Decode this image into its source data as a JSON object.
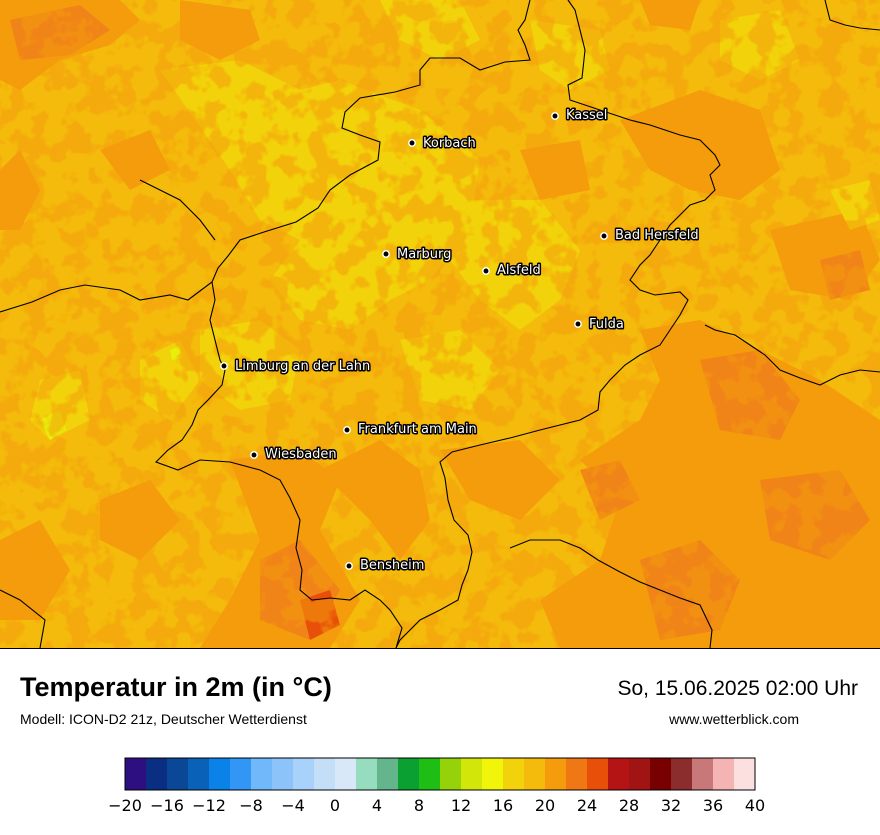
{
  "map": {
    "cities": [
      {
        "name": "Kassel"
      },
      {
        "name": "Korbach"
      },
      {
        "name": "Bad Hersfeld"
      },
      {
        "name": "Marburg"
      },
      {
        "name": "Alsfeld"
      },
      {
        "name": "Fulda"
      },
      {
        "name": "Limburg an der Lahn"
      },
      {
        "name": "Frankfurt am Main"
      },
      {
        "name": "Wiesbaden"
      },
      {
        "name": "Bensheim"
      }
    ],
    "colors": {
      "base": "#f4bb0c",
      "warm": "#f49c0c",
      "hot": "#f08418",
      "cool": "#f2d20a",
      "coolest": "#e7f00a"
    }
  },
  "footer": {
    "title": "Temperatur in 2m (in °C)",
    "model": "Modell: ICON-D2 21z, Deutscher Wetterdienst",
    "datetime": "So, 15.06.2025 02:00 Uhr",
    "website": "www.wetterblick.com"
  },
  "legend": {
    "colors": [
      "#2d0f82",
      "#0a2f82",
      "#0a4796",
      "#0a62b8",
      "#0a82e8",
      "#3296f4",
      "#70b8fa",
      "#8cc4fa",
      "#a8d2fa",
      "#c4def8",
      "#d8e8f8",
      "#96dcbe",
      "#64b48c",
      "#0aa032",
      "#1ebe14",
      "#96d20a",
      "#d2e60a",
      "#f0f50a",
      "#f2d20a",
      "#f4bb0c",
      "#f49c0c",
      "#f07814",
      "#e8500a",
      "#b41414",
      "#a01414",
      "#780000",
      "#8c2d2d",
      "#c87878",
      "#f4b4b4",
      "#fce0e0"
    ],
    "tick_labels": [
      "−20",
      "−16",
      "−12",
      "−8",
      "−4",
      "0",
      "4",
      "8",
      "12",
      "16",
      "20",
      "24",
      "28",
      "32",
      "36",
      "40"
    ],
    "range": [
      -20,
      40
    ]
  }
}
